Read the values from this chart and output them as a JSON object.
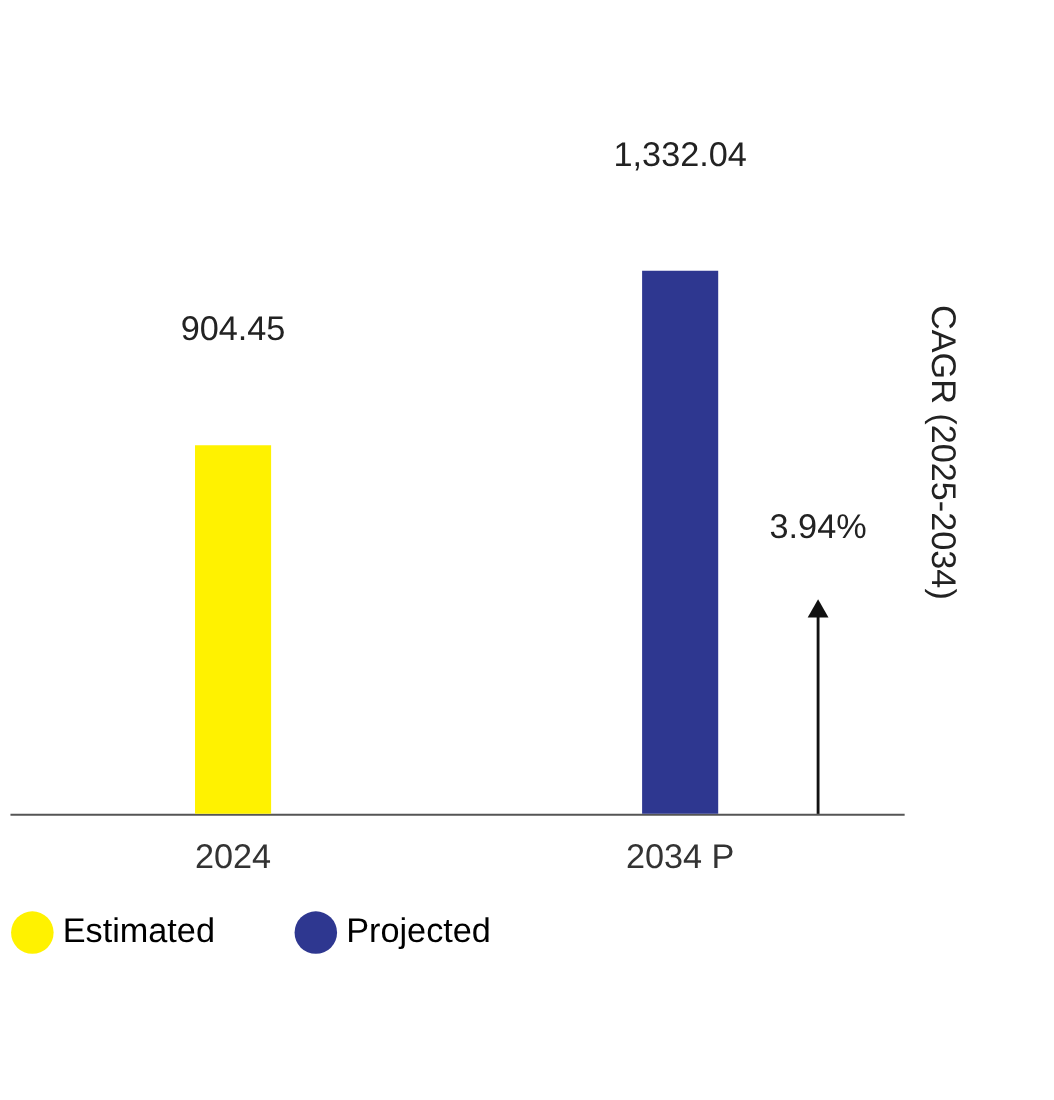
{
  "chart_data": {
    "type": "bar",
    "categories": [
      "2024",
      "2034 P"
    ],
    "series": [
      {
        "name": "Estimated",
        "color": "#fff200",
        "values": [
          904.45,
          null
        ],
        "value_labels": [
          "904.45",
          null
        ]
      },
      {
        "name": "Projected",
        "color": "#2e3790",
        "values": [
          null,
          1332.04
        ],
        "value_labels": [
          null,
          "1,332.04"
        ]
      }
    ],
    "legend": "bottom",
    "grid": false,
    "tick_labels": "x",
    "annotations": [
      "3.94%",
      "CAGR (2025-2034)"
    ]
  }
}
